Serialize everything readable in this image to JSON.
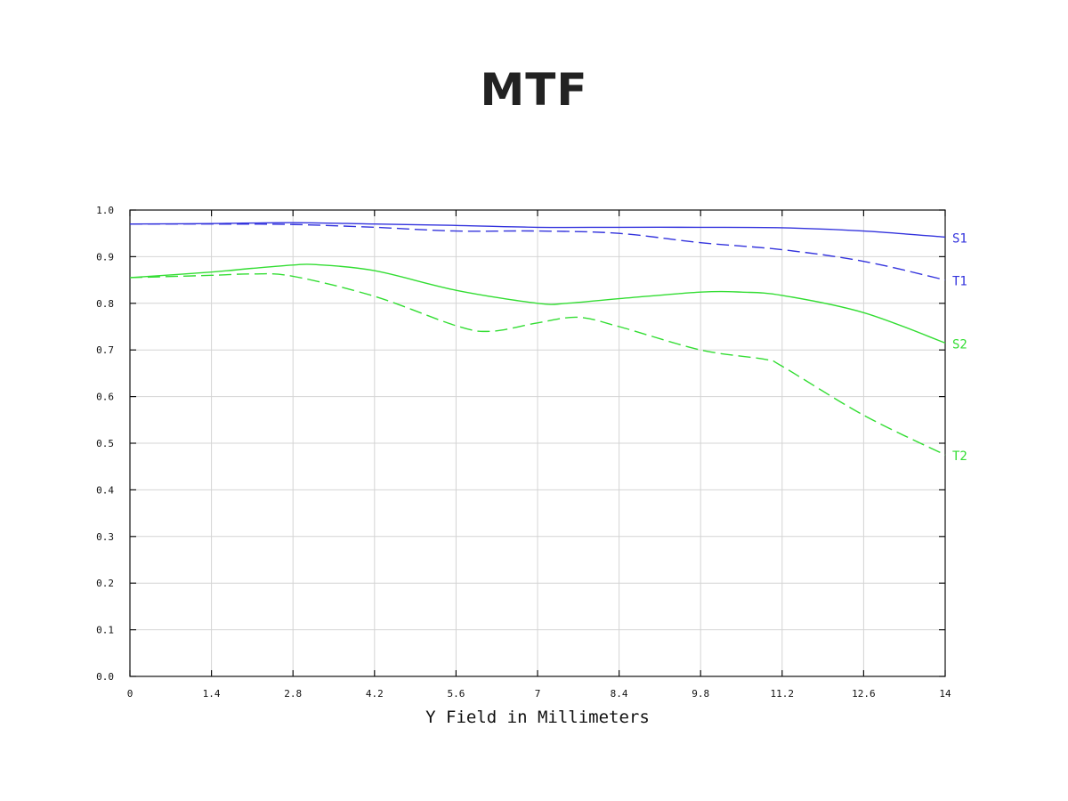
{
  "title": "MTF",
  "chart_data": {
    "type": "line",
    "title": "MTF",
    "xlabel": "Y Field in Millimeters",
    "ylabel": "",
    "xlim": [
      0,
      14
    ],
    "ylim": [
      0,
      1.0
    ],
    "x_ticks": [
      "0",
      "1.4",
      "2.8",
      "4.2",
      "5.6",
      "7",
      "8.4",
      "9.8",
      "11.2",
      "12.6",
      "14"
    ],
    "y_ticks": [
      "0.0",
      "0.1",
      "0.2",
      "0.3",
      "0.4",
      "0.5",
      "0.6",
      "0.7",
      "0.8",
      "0.9",
      "1.0"
    ],
    "grid": true,
    "series": [
      {
        "name": "S1",
        "color": "#3333dd",
        "dash": "solid",
        "x": [
          0,
          1.4,
          2.8,
          4.2,
          5.6,
          7,
          8.4,
          9.8,
          11.2,
          12.6,
          14
        ],
        "y": [
          0.97,
          0.971,
          0.973,
          0.97,
          0.967,
          0.963,
          0.963,
          0.963,
          0.962,
          0.955,
          0.942
        ]
      },
      {
        "name": "T1",
        "color": "#3333dd",
        "dash": "dashed",
        "x": [
          0,
          1.4,
          2.8,
          4.2,
          5.6,
          7,
          8.4,
          9.8,
          11.2,
          12.6,
          14
        ],
        "y": [
          0.97,
          0.97,
          0.969,
          0.963,
          0.955,
          0.955,
          0.95,
          0.93,
          0.915,
          0.89,
          0.85
        ]
      },
      {
        "name": "S2",
        "color": "#33dd33",
        "dash": "solid",
        "x": [
          0,
          1.4,
          2.1,
          2.8,
          3.2,
          4.2,
          5.6,
          7,
          7.5,
          8.4,
          9.8,
          10.5,
          11.2,
          12.6,
          14
        ],
        "y": [
          0.855,
          0.867,
          0.875,
          0.882,
          0.883,
          0.87,
          0.828,
          0.8,
          0.8,
          0.81,
          0.824,
          0.824,
          0.817,
          0.78,
          0.715
        ]
      },
      {
        "name": "T2",
        "color": "#33dd33",
        "dash": "dashed",
        "x": [
          0,
          1.4,
          2.1,
          2.8,
          4.2,
          5.6,
          6.2,
          7,
          7.7,
          8.4,
          9.8,
          10.9,
          11.2,
          12.6,
          14
        ],
        "y": [
          0.855,
          0.86,
          0.863,
          0.858,
          0.815,
          0.752,
          0.74,
          0.758,
          0.77,
          0.75,
          0.7,
          0.68,
          0.665,
          0.56,
          0.475
        ]
      }
    ]
  }
}
